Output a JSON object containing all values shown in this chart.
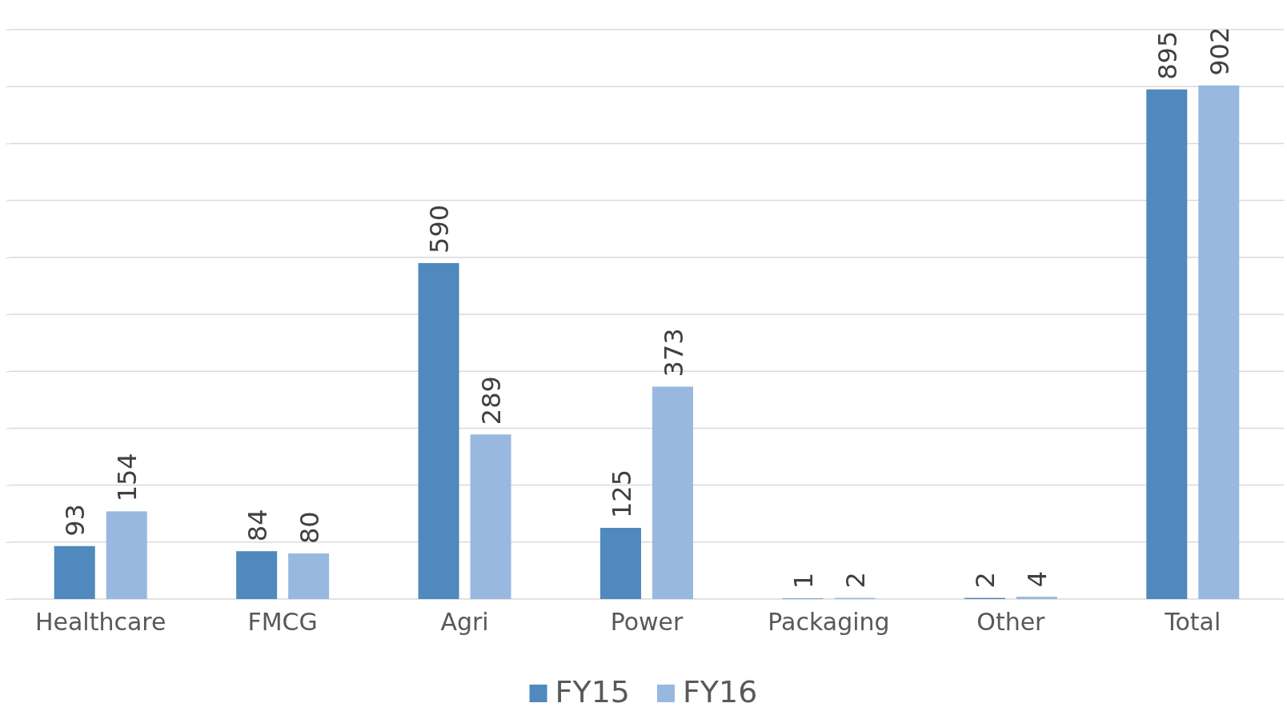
{
  "chart_data": {
    "type": "bar",
    "categories": [
      "Healthcare",
      "FMCG",
      "Agri",
      "Power",
      "Packaging",
      "Other",
      "Total"
    ],
    "series": [
      {
        "name": "FY15",
        "color": "#4f89bd",
        "values": [
          93,
          84,
          590,
          125,
          1,
          2,
          895
        ]
      },
      {
        "name": "FY16",
        "color": "#98b8df",
        "values": [
          154,
          80,
          289,
          373,
          2,
          4,
          902
        ]
      }
    ],
    "ylim": [
      0,
      1000
    ],
    "yticks": [
      {
        "value": 0,
        "label": null
      },
      {
        "value": 100,
        "label": null
      },
      {
        "value": 200,
        "label": null
      },
      {
        "value": 300,
        "label": null
      },
      {
        "value": 400,
        "label": null
      },
      {
        "value": 500,
        "label": null
      },
      {
        "value": 600,
        "label": null
      },
      {
        "value": 700,
        "label": null
      },
      {
        "value": 800,
        "label": null
      },
      {
        "value": 900,
        "label": null
      },
      {
        "value": 1000,
        "label": null
      }
    ],
    "tick_labels": "x",
    "grid": "y",
    "data_labels": true,
    "legend": "bottom"
  }
}
